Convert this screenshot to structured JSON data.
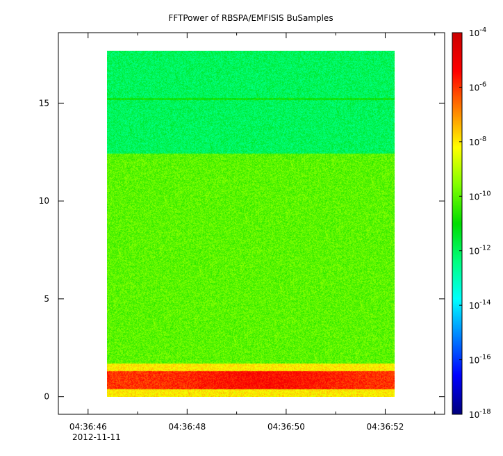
{
  "chart_data": {
    "type": "heatmap",
    "title": "FFTPower of RBSPA/EMFISIS  BuSamples",
    "xlabel": "",
    "ylabel": "",
    "x_ticks": [
      "04:36:46",
      "04:36:48",
      "04:36:50",
      "04:36:52"
    ],
    "x_date_label": "2012-11-11",
    "x_range": [
      "04:36:45.4",
      "04:36:53.2"
    ],
    "data_x_range": [
      "04:36:46.4",
      "04:36:52.3"
    ],
    "y_ticks": [
      0,
      5,
      10,
      15
    ],
    "ylim": [
      -0.9,
      18.6
    ],
    "data_y_range": [
      0,
      17.5
    ],
    "colorbar": {
      "scale": "log",
      "range": [
        1e-18,
        0.0001
      ],
      "tick_exponents": [
        -4,
        -6,
        -8,
        -10,
        -12,
        -14,
        -16,
        -18
      ],
      "tick_base": "10",
      "colormap": [
        "#00007f",
        "#0000ff",
        "#007fff",
        "#00ffff",
        "#00ff80",
        "#00dd00",
        "#80ff00",
        "#ffff00",
        "#ff8000",
        "#ff0000",
        "#cc0000"
      ]
    },
    "bands": [
      {
        "y": [
          0,
          0.4
        ],
        "level": "high",
        "approx_power": 1e-08
      },
      {
        "y": [
          0.4,
          1.3
        ],
        "level": "peak",
        "approx_power": 1e-06
      },
      {
        "y": [
          1.3,
          1.7
        ],
        "level": "elevated",
        "approx_power": 1e-08
      },
      {
        "y": [
          1.7,
          12.3
        ],
        "level": "moderate",
        "approx_power": 1e-10
      },
      {
        "y": [
          12.3,
          17.5
        ],
        "level": "low",
        "approx_power": 1e-12
      },
      {
        "y": [
          15.0,
          15.1
        ],
        "level": "line",
        "approx_power": 1e-11
      }
    ],
    "grid": false,
    "legend": "colorbar-right"
  }
}
